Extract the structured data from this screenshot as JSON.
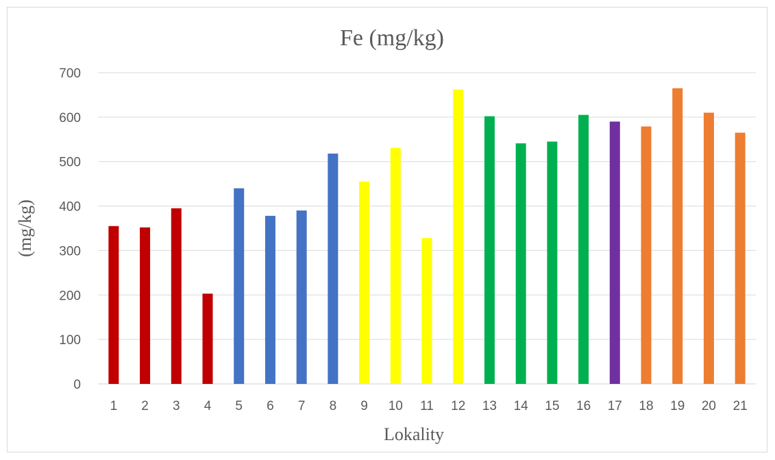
{
  "chart_data": {
    "type": "bar",
    "title": "Fe (mg/kg)",
    "xlabel": "Lokality",
    "ylabel": "(mg/kg)",
    "categories": [
      "1",
      "2",
      "3",
      "4",
      "5",
      "6",
      "7",
      "8",
      "9",
      "10",
      "11",
      "12",
      "13",
      "14",
      "15",
      "16",
      "17",
      "18",
      "19",
      "20",
      "21"
    ],
    "values": [
      355,
      352,
      395,
      203,
      440,
      378,
      390,
      518,
      455,
      531,
      328,
      662,
      602,
      541,
      545,
      605,
      590,
      579,
      665,
      610,
      565
    ],
    "bar_colors": [
      "#c00000",
      "#c00000",
      "#c00000",
      "#c00000",
      "#4472c4",
      "#4472c4",
      "#4472c4",
      "#4472c4",
      "#ffff00",
      "#ffff00",
      "#ffff00",
      "#ffff00",
      "#00b050",
      "#00b050",
      "#00b050",
      "#00b050",
      "#7030a0",
      "#ed7d31",
      "#ed7d31",
      "#ed7d31",
      "#ed7d31"
    ],
    "ylim": [
      0,
      700
    ],
    "yticks": [
      0,
      100,
      200,
      300,
      400,
      500,
      600,
      700
    ],
    "grid": true,
    "legend": "none"
  }
}
